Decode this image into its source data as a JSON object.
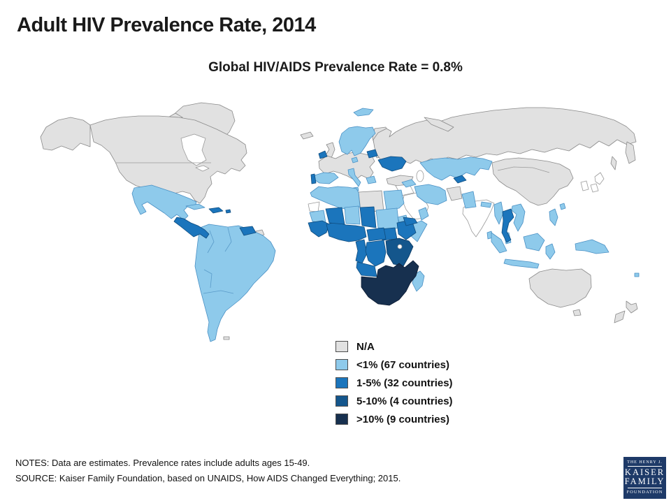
{
  "title": "Adult HIV Prevalence Rate, 2014",
  "subtitle": "Global HIV/AIDS Prevalence Rate = 0.8%",
  "notes": "NOTES: Data are estimates. Prevalence rates include adults ages 15-49.",
  "source": "SOURCE: Kaiser Family Foundation, based on UNAIDS, How AIDS Changed Everything; 2015.",
  "logo": {
    "line1": "THE HENRY J.",
    "line2": "KAISER",
    "line3": "FAMILY",
    "line4": "FOUNDATION",
    "background": "#1e3a68",
    "text_color": "#ffffff"
  },
  "chart_data": {
    "type": "choropleth-world-map",
    "title": "Adult HIV Prevalence Rate, 2014",
    "subtitle": "Global HIV/AIDS Prevalence Rate = 0.8%",
    "global_rate_percent": 0.8,
    "legend_position": "bottom-center, over ocean below Africa",
    "legend": [
      {
        "key": "na",
        "label": "N/A",
        "color": "#e1e1e1",
        "countries": null
      },
      {
        "key": "lt1",
        "label": "<1% (67 countries)",
        "color": "#8ecaeb",
        "countries": 67
      },
      {
        "key": "r15",
        "label": "1-5% (32 countries)",
        "color": "#1b75bc",
        "countries": 32
      },
      {
        "key": "r510",
        "label": "5-10% (4 countries)",
        "color": "#14568c",
        "countries": 4
      },
      {
        "key": "gt10",
        "label": ">10% (9 countries)",
        "color": "#17304f",
        "countries": 9
      }
    ],
    "category_colors": {
      "na": "#e1e1e1",
      "lt1": "#8ecaeb",
      "r15": "#1b75bc",
      "r510": "#14568c",
      "gt10": "#17304f",
      "nodata": "#ffffff"
    },
    "category_strokes": {
      "na": "#8a8a8a",
      "lt1": "#4a90c4",
      "r15": "#0f4c7e",
      "r510": "#0b3a63",
      "gt10": "#0d1c33",
      "nodata": "#9a9a9a"
    },
    "visual_regions_as_depicted": {
      "na_gray": [
        "United States",
        "Canada",
        "Greenland",
        "Iceland",
        "United Kingdom",
        "Finland",
        "Central/Eastern Europe",
        "Turkey",
        "Russia",
        "Afghanistan",
        "China",
        "Mongolia",
        "Libya",
        "Australia",
        "New Zealand"
      ],
      "lt1_light_blue": [
        "Mexico",
        "Cuba",
        "Most of South America",
        "Scandinavia",
        "Spain",
        "Italy",
        "Greece",
        "Morocco",
        "Algeria",
        "Egypt",
        "Sudan",
        "Niger",
        "Mauritania",
        "Somalia",
        "Madagascar",
        "Kazakhstan",
        "Central Asia",
        "Iran",
        "Pakistan",
        "Myanmar",
        "Vietnam",
        "Indonesia",
        "Philippines",
        "Papua New Guinea"
      ],
      "r15_medium_blue": [
        "Central America",
        "Haiti/Dominican Republic",
        "Guyana/Suriname",
        "Ireland",
        "Portugal",
        "Baltic states",
        "Ukraine",
        "West Africa",
        "Chad",
        "South Sudan",
        "Ethiopia",
        "Central Africa",
        "DR Congo",
        "Angola",
        "Yemen",
        "Thailand"
      ],
      "r510_dark_blue": [
        "Uganda",
        "Kenya",
        "Tanzania"
      ],
      "gt10_navy": [
        "Namibia",
        "Botswana",
        "South Africa",
        "Zimbabwe",
        "Zambia",
        "Malawi",
        "Mozambique",
        "Lesotho",
        "Swaziland"
      ]
    }
  }
}
